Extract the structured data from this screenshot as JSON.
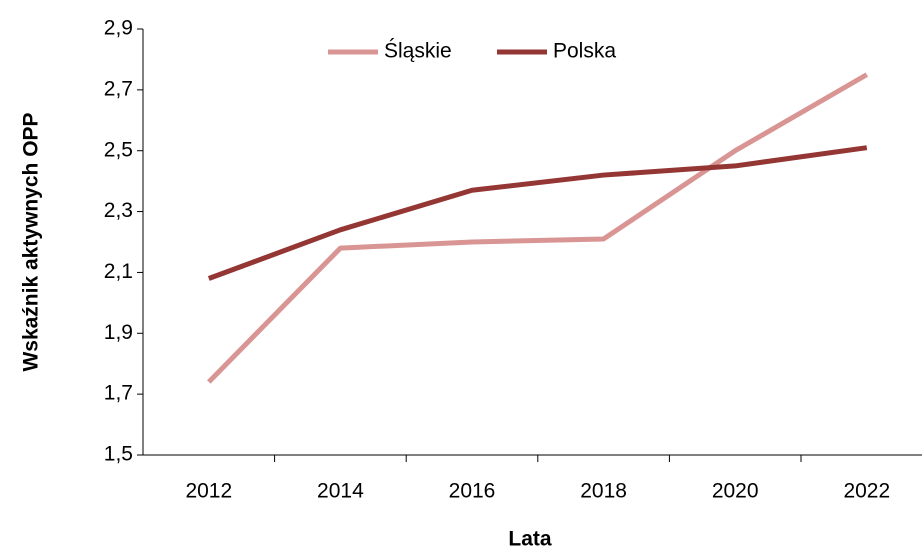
{
  "chart_data": {
    "type": "line",
    "x_label": "Lata",
    "y_label": "Wskaźnik aktywnych OPP",
    "categories": [
      "2012",
      "2014",
      "2016",
      "2018",
      "2020",
      "2022"
    ],
    "series": [
      {
        "name": "Śląskie",
        "color": "#d99594",
        "values": [
          1.74,
          2.18,
          2.2,
          2.21,
          2.5,
          2.75
        ]
      },
      {
        "name": "Polska",
        "color": "#943634",
        "values": [
          2.08,
          2.24,
          2.37,
          2.42,
          2.45,
          2.51
        ]
      }
    ],
    "ylim": [
      1.5,
      2.9
    ],
    "yticks": [
      {
        "value": 1.5,
        "label": "1,5"
      },
      {
        "value": 1.7,
        "label": "1,7"
      },
      {
        "value": 1.9,
        "label": "1,9"
      },
      {
        "value": 2.1,
        "label": "2,1"
      },
      {
        "value": 2.3,
        "label": "2,3"
      },
      {
        "value": 2.5,
        "label": "2,5"
      },
      {
        "value": 2.7,
        "label": "2,7"
      },
      {
        "value": 2.9,
        "label": "2,9"
      }
    ],
    "legend": "top"
  }
}
